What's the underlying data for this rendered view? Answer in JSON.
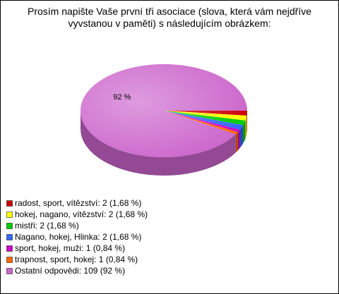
{
  "chart_data": {
    "type": "pie3d",
    "title": "Prosím napište Vaše první tři asociace (slova, která vám nejdříve vyvstanou v paměti) s následujícím obrázkem:",
    "categories": [
      "radost, sport, vítězství: 2 (1,68 %)",
      "hokej, nagano, vítězství: 2 (1,68 %)",
      "mistři: 2 (1,68 %)",
      "Nagano, hokej, Hlinka: 2 (1,68 %)",
      "sport, hokej, muži: 1 (0,84 %)",
      "trapnost, sport, hokej: 1 (0,84 %)",
      "Ostatní odpovědi: 109 (92 %)"
    ],
    "values": [
      2,
      2,
      2,
      2,
      1,
      1,
      109
    ],
    "value_labels": [
      null,
      null,
      null,
      null,
      null,
      null,
      "92 %"
    ],
    "colors": [
      "#cc0000",
      "#ffff00",
      "#00cc00",
      "#3366ff",
      "#cc00cc",
      "#ff6600",
      "#cc66cc"
    ]
  }
}
